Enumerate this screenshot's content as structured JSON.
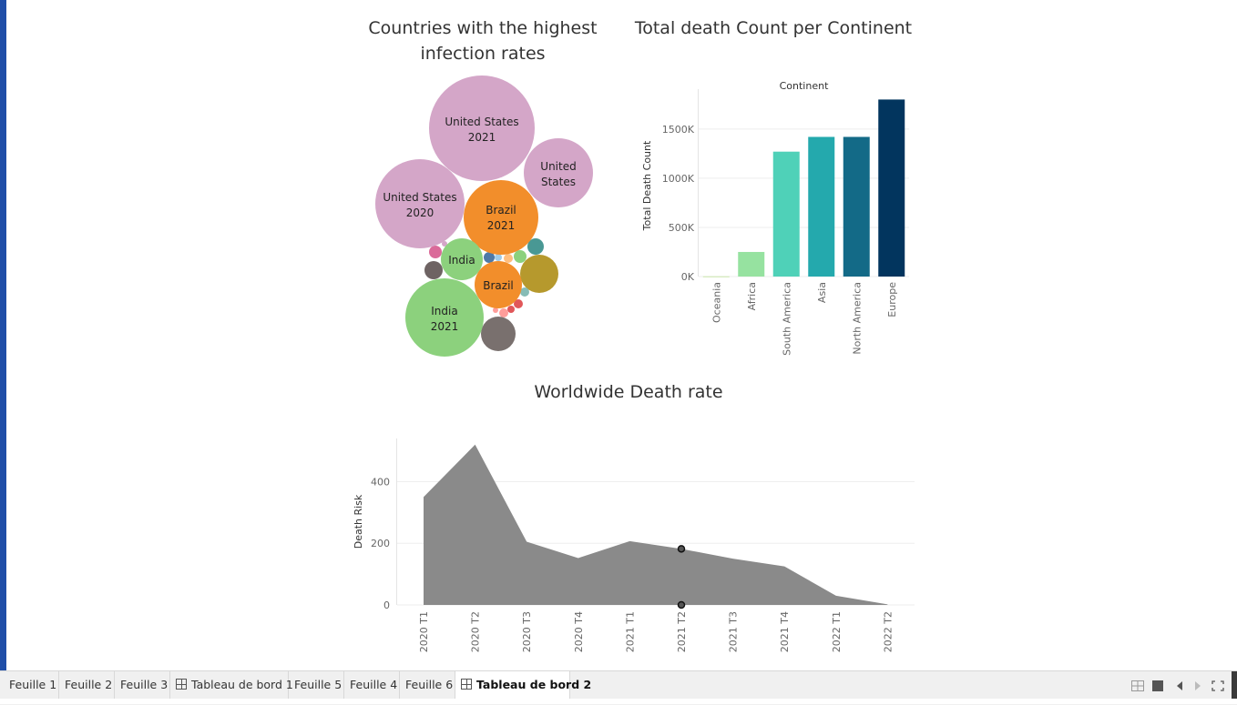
{
  "titles": {
    "bubbles_line1": "Countries with the highest",
    "bubbles_line2": "infection rates",
    "bar": "Total death Count per Continent",
    "area": "Worldwide Death rate"
  },
  "bubbles": [
    {
      "label1": "United States",
      "label2": "2021",
      "color": "#d4a6c8"
    },
    {
      "label1": "United States",
      "label2": "2020",
      "color": "#d4a6c8"
    },
    {
      "label1": "United",
      "label2": "States",
      "color": "#d4a6c8"
    },
    {
      "label1": "Brazil",
      "label2": "2021",
      "color": "#f28e2b"
    },
    {
      "label1": "India",
      "label2": "",
      "color": "#8cd17d"
    },
    {
      "label1": "Brazil",
      "label2": "",
      "color": "#f28e2b"
    },
    {
      "label1": "India",
      "label2": "2021",
      "color": "#8cd17d"
    }
  ],
  "chart_data": [
    {
      "type": "bar",
      "title": "Total death Count per Continent",
      "header": "Continent",
      "ylabel": "Total Death Count",
      "categories": [
        "Oceania",
        "Africa",
        "South America",
        "Asia",
        "North America",
        "Europe"
      ],
      "values": [
        2500,
        250000,
        1270000,
        1420000,
        1420000,
        1800000
      ],
      "colors": [
        "#c9e4a8",
        "#96e2a0",
        "#4fd1b8",
        "#24a9ad",
        "#136a87",
        "#02355e"
      ],
      "yticks": [
        0,
        500000,
        1000000,
        1500000
      ],
      "ytick_labels": [
        "0K",
        "500K",
        "1000K",
        "1500K"
      ],
      "ylim": [
        0,
        1850000
      ],
      "grid": true
    },
    {
      "type": "area",
      "title": "Worldwide Death rate",
      "ylabel": "Death Risk",
      "x": [
        "2020 T1",
        "2020 T2",
        "2020 T3",
        "2020 T4",
        "2021 T1",
        "2021 T2",
        "2021 T3",
        "2021 T4",
        "2022 T1",
        "2022 T2"
      ],
      "values": [
        350,
        520,
        205,
        152,
        207,
        182,
        150,
        125,
        30,
        2
      ],
      "yticks": [
        0,
        200,
        400
      ],
      "ylim": [
        0,
        540
      ],
      "color": "#8a8a8a",
      "grid": true
    }
  ],
  "tabs": [
    {
      "label": "Feuille 1",
      "icon": false,
      "active": false
    },
    {
      "label": "Feuille 2",
      "icon": false,
      "active": false
    },
    {
      "label": "Feuille 3",
      "icon": false,
      "active": false
    },
    {
      "label": "Tableau de bord 1",
      "icon": true,
      "active": false
    },
    {
      "label": "Feuille 5",
      "icon": false,
      "active": false
    },
    {
      "label": "Feuille 4",
      "icon": false,
      "active": false
    },
    {
      "label": "Feuille 6",
      "icon": false,
      "active": false
    },
    {
      "label": "Tableau de bord 2",
      "icon": true,
      "active": true
    }
  ],
  "toolbar_icons": [
    "grid-view-icon",
    "filmstrip-view-icon",
    "prev-sheet-icon",
    "next-sheet-icon",
    "fullscreen-icon"
  ]
}
